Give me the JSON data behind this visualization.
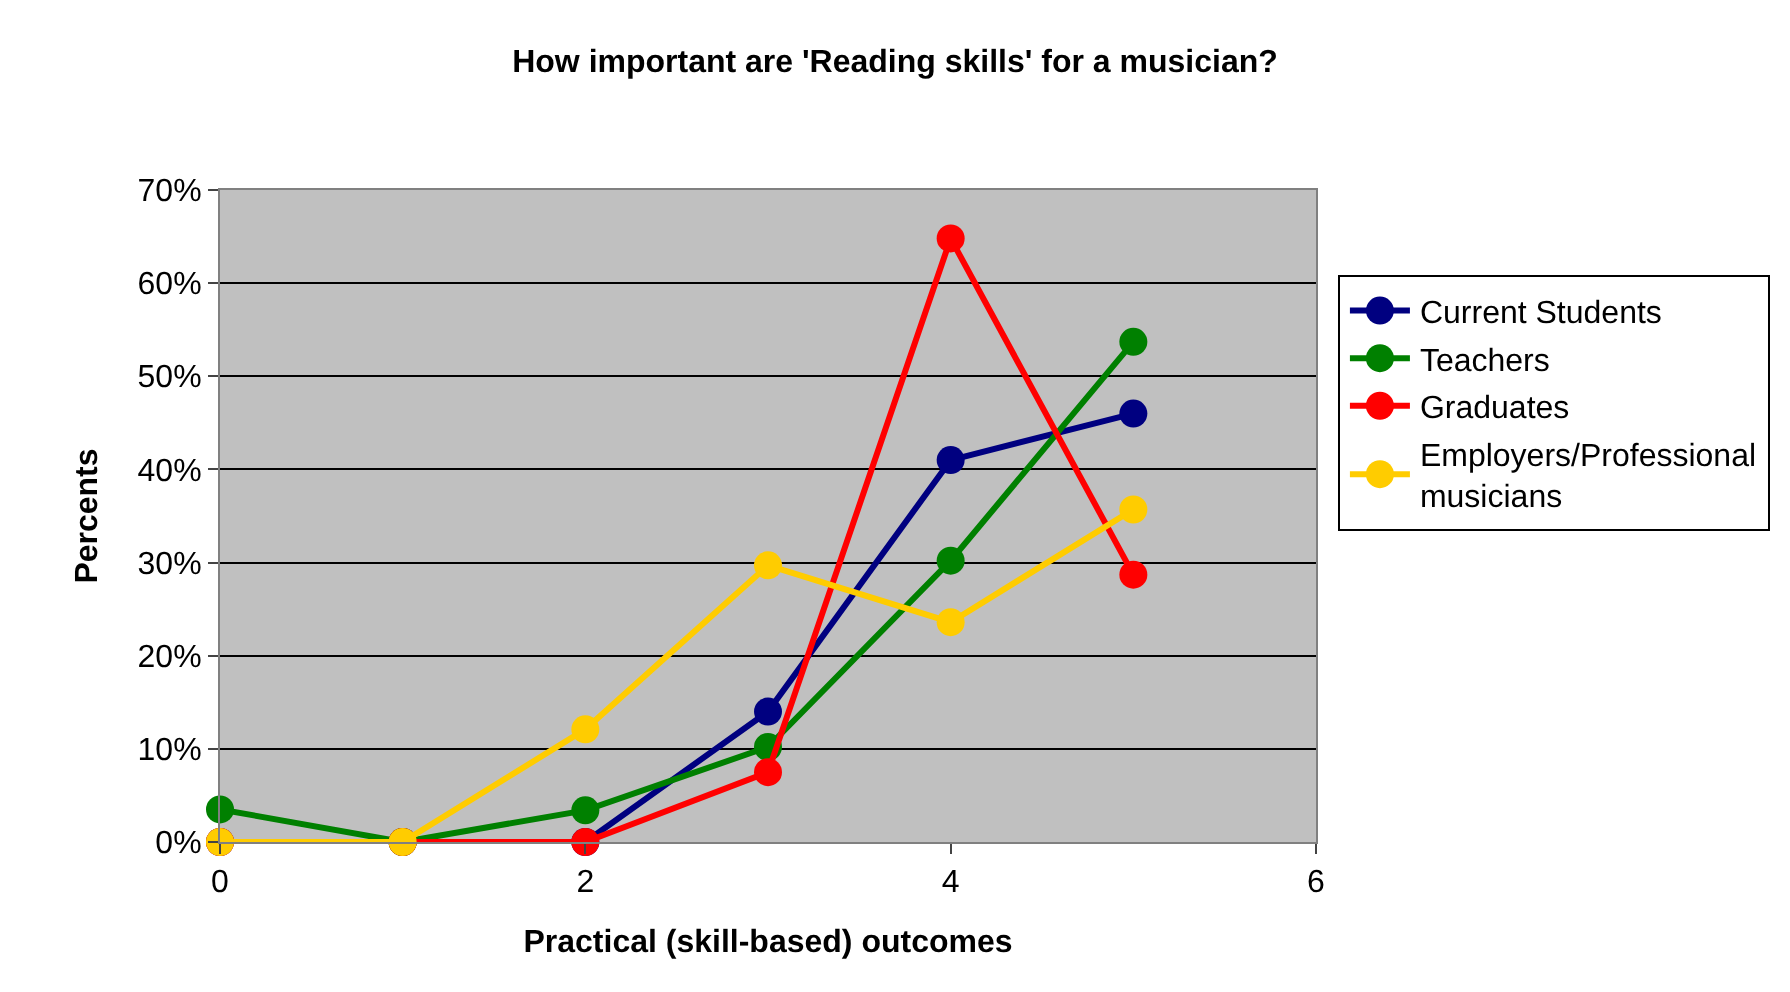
{
  "chart_data": {
    "type": "line",
    "title": "How important are 'Reading skills' for a musician?",
    "xlabel": "Practical (skill-based) outcomes",
    "ylabel": "Percents",
    "x": [
      0,
      1,
      2,
      3,
      4,
      5
    ],
    "series": [
      {
        "name": "Current Students",
        "color": "#000080",
        "values": [
          0,
          0,
          0,
          14,
          41,
          46
        ]
      },
      {
        "name": "Teachers",
        "color": "#008000",
        "values": [
          3.5,
          0,
          3.4,
          10.2,
          30.2,
          53.7
        ]
      },
      {
        "name": "Graduates",
        "color": "#ff0000",
        "values": [
          0,
          0,
          0,
          7.5,
          64.8,
          28.7
        ]
      },
      {
        "name": "Employers/Professional musicians",
        "color": "#ffcc00",
        "values": [
          0,
          0,
          12.1,
          29.7,
          23.6,
          35.7
        ]
      }
    ],
    "xlim": [
      0,
      6
    ],
    "xticks": [
      0,
      2,
      4,
      6
    ],
    "ylim": [
      0,
      70
    ],
    "yticks": [
      {
        "value": 0,
        "label": "0%"
      },
      {
        "value": 10,
        "label": "10%"
      },
      {
        "value": 20,
        "label": "20%"
      },
      {
        "value": 30,
        "label": "30%"
      },
      {
        "value": 40,
        "label": "40%"
      },
      {
        "value": 50,
        "label": "50%"
      },
      {
        "value": 60,
        "label": "60%"
      },
      {
        "value": 70,
        "label": "70%"
      }
    ],
    "grid": "y",
    "legend": "right",
    "marker": "circle",
    "line_style": "solid"
  }
}
